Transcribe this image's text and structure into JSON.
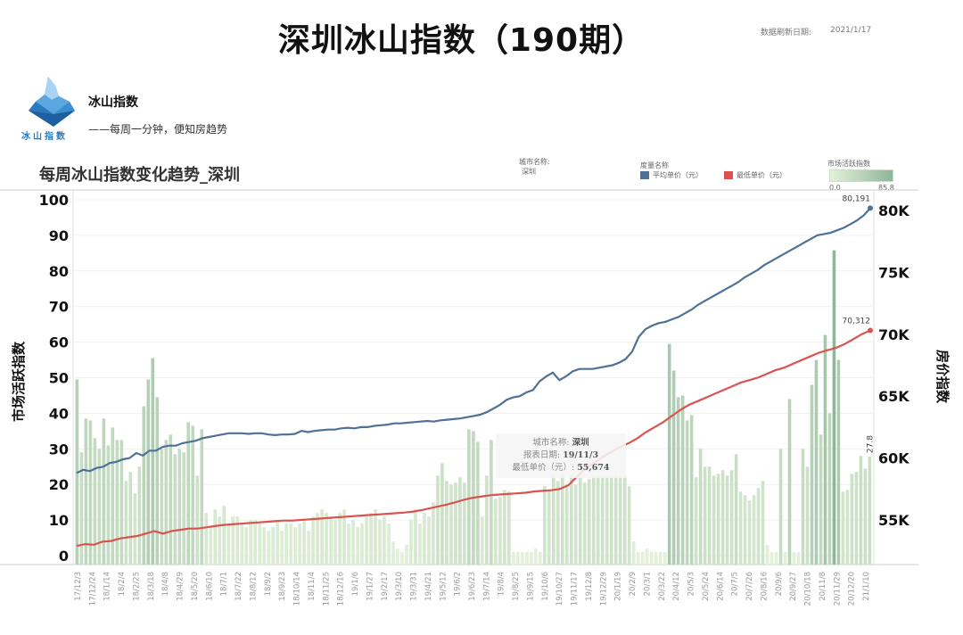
{
  "header": {
    "title": "深圳冰山指数（190期）",
    "refresh_label": "数据刷新日期:",
    "refresh_date": "2021/1/17"
  },
  "brand": {
    "logo_caption": "冰山指数",
    "name": "冰山指数",
    "slogan": "——每周一分钟，便知房趋势"
  },
  "filters": {
    "city_label": "城市名称:",
    "city_value": "深圳",
    "measure_label": "度量名称",
    "activity_label": "市场活跃指数",
    "activity_min": "0.0",
    "activity_max": "85.8"
  },
  "tooltip": {
    "city_label": "城市名称:",
    "city_value": "深圳",
    "date_label": "报表日期:",
    "date_value": "19/11/3",
    "price_label": "最低单价（元）:",
    "price_value": "55,674"
  },
  "chart_data": {
    "type": "bar+line",
    "title": "每周冰山指数变化趋势_深圳",
    "ylabel_left": "市场活跃指数",
    "ylabel_right": "房价指数",
    "ylim_left": [
      0,
      100
    ],
    "ylim_right": [
      52500,
      81000
    ],
    "yticks_left": [
      "0",
      "10",
      "20",
      "30",
      "40",
      "50",
      "60",
      "70",
      "80",
      "90",
      "100"
    ],
    "yticks_right": [
      "55K",
      "60K",
      "65K",
      "70K",
      "75K",
      "80K"
    ],
    "grid": true,
    "legend": [
      {
        "name": "平均单价（元）",
        "color": "#4e7196"
      },
      {
        "name": "最低单价（元）",
        "color": "#d9534f"
      },
      {
        "name": "市场活跃指数",
        "color_range": [
          "#e3f2d9",
          "#8fb59a"
        ]
      }
    ],
    "x_tick_labels": [
      "17/12/3",
      "17/12/24",
      "18/1/14",
      "18/2/4",
      "18/2/25",
      "18/3/18",
      "18/4/8",
      "18/4/29",
      "18/5/20",
      "18/6/10",
      "18/7/1",
      "18/7/22",
      "18/8/12",
      "18/9/2",
      "18/9/23",
      "18/10/14",
      "18/11/4",
      "18/11/25",
      "18/12/16",
      "19/1/6",
      "19/1/27",
      "19/2/17",
      "19/3/10",
      "19/3/31",
      "19/4/21",
      "19/5/12",
      "19/6/2",
      "19/6/23",
      "19/7/14",
      "19/8/4",
      "19/8/25",
      "19/9/15",
      "19/10/6",
      "19/10/27",
      "19/11/17",
      "19/12/8",
      "19/12/29",
      "20/1/19",
      "20/2/9",
      "20/3/1",
      "20/3/22",
      "20/4/12",
      "20/5/3",
      "20/5/24",
      "20/6/14",
      "20/7/5",
      "20/7/26",
      "20/8/16",
      "20/9/6",
      "20/9/27",
      "20/10/18",
      "20/11/8",
      "20/11/29",
      "20/12/20",
      "21/1/10"
    ],
    "series": [
      {
        "name": "市场活跃指数",
        "type": "bar",
        "values": [
          49.5,
          29,
          38.5,
          38,
          33,
          30,
          38.5,
          31,
          36,
          32.5,
          32.5,
          21,
          23.5,
          17.5,
          25,
          42,
          49.5,
          55.5,
          44.5,
          30,
          32.5,
          34,
          28.5,
          30,
          29,
          37.5,
          36.5,
          22.5,
          35.5,
          12,
          8,
          13,
          11,
          14,
          9,
          11,
          11,
          9,
          8,
          10,
          10,
          9,
          8,
          7,
          8,
          10,
          7,
          9,
          9,
          8,
          9,
          10,
          7,
          11,
          12,
          13,
          12,
          11,
          10,
          12,
          13,
          9,
          10,
          8,
          9,
          11,
          12,
          13,
          10,
          11,
          9,
          4,
          2,
          1,
          3,
          10,
          13,
          9,
          12,
          11,
          15,
          22.5,
          26,
          21,
          20,
          20.5,
          22,
          20.5,
          35.5,
          35,
          32,
          11,
          22.5,
          32.5,
          16,
          16.5,
          18.5,
          18,
          1,
          1,
          1,
          1,
          1,
          2,
          1,
          19.5,
          18.5,
          22.5,
          21,
          23,
          20,
          22.5,
          20,
          22.5,
          20.5,
          21.5,
          22.5,
          22.5,
          22.5,
          22.5,
          22.5,
          22.5,
          22.5,
          22.5,
          19.5,
          4,
          1,
          1,
          2,
          1,
          1,
          1,
          1,
          59.5,
          52,
          44.5,
          45,
          38,
          39.5,
          22,
          30,
          25,
          25,
          22.5,
          23,
          24,
          22.5,
          24,
          28.5,
          18,
          17,
          15.5,
          17,
          19,
          21,
          3,
          1,
          1,
          30,
          1,
          44,
          1,
          1,
          30,
          25,
          48,
          55,
          34,
          62,
          40,
          85.8,
          55,
          18,
          18.5,
          23,
          23.5,
          28,
          24.5,
          27.8
        ]
      },
      {
        "name": "平均单价（元）",
        "type": "line",
        "color": "#4e7196",
        "values": [
          58800,
          59050,
          58950,
          59200,
          59300,
          59600,
          59700,
          59900,
          60000,
          60400,
          60200,
          60600,
          60600,
          60900,
          61000,
          61000,
          61200,
          61300,
          61400,
          61600,
          61700,
          61800,
          61900,
          62000,
          62000,
          62000,
          61950,
          62000,
          62000,
          61900,
          61850,
          61900,
          61900,
          61950,
          62200,
          62100,
          62200,
          62250,
          62300,
          62300,
          62400,
          62450,
          62400,
          62500,
          62500,
          62600,
          62650,
          62700,
          62800,
          62800,
          62850,
          62900,
          62950,
          63000,
          62950,
          63050,
          63100,
          63150,
          63200,
          63300,
          63400,
          63500,
          63700,
          64000,
          64300,
          64700,
          64900,
          65000,
          65300,
          65500,
          66200,
          66600,
          66900,
          66300,
          66600,
          67000,
          67200,
          67200,
          67200,
          67300,
          67400,
          67500,
          67700,
          68000,
          68600,
          69800,
          70400,
          70700,
          70900,
          71000,
          71200,
          71400,
          71700,
          72000,
          72400,
          72700,
          73000,
          73300,
          73600,
          73900,
          74200,
          74600,
          74900,
          75200,
          75600,
          75900,
          76200,
          76500,
          76800,
          77100,
          77400,
          77700,
          78000,
          78100,
          78200,
          78400,
          78600,
          78900,
          79200,
          79600,
          80191
        ]
      },
      {
        "name": "最低单价（元）",
        "type": "line",
        "color": "#d9534f",
        "values": [
          52900,
          53050,
          53000,
          53250,
          53300,
          53500,
          53600,
          53700,
          53900,
          54100,
          53900,
          54100,
          54200,
          54300,
          54300,
          54400,
          54500,
          54600,
          54650,
          54700,
          54750,
          54800,
          54850,
          54900,
          54950,
          54950,
          55000,
          55050,
          55100,
          55150,
          55200,
          55250,
          55300,
          55350,
          55400,
          55450,
          55500,
          55550,
          55600,
          55674,
          55800,
          55950,
          56100,
          56250,
          56450,
          56650,
          56800,
          56900,
          57000,
          57050,
          57100,
          57150,
          57200,
          57300,
          57350,
          57400,
          57500,
          57800,
          58500,
          59200,
          59600,
          60100,
          60500,
          60900,
          61200,
          61600,
          62100,
          62500,
          62900,
          63400,
          63900,
          64300,
          64600,
          64900,
          65200,
          65500,
          65800,
          66100,
          66300,
          66500,
          66800,
          67100,
          67300,
          67600,
          67900,
          68200,
          68500,
          68700,
          68900,
          69200,
          69600,
          70000,
          70312
        ]
      }
    ],
    "annotations": [
      {
        "text": "80,191",
        "series": "平均单价（元）",
        "position": "last"
      },
      {
        "text": "70,312",
        "series": "最低单价（元）",
        "position": "last"
      },
      {
        "text": "27.8",
        "series": "市场活跃指数",
        "position": "last"
      }
    ]
  }
}
